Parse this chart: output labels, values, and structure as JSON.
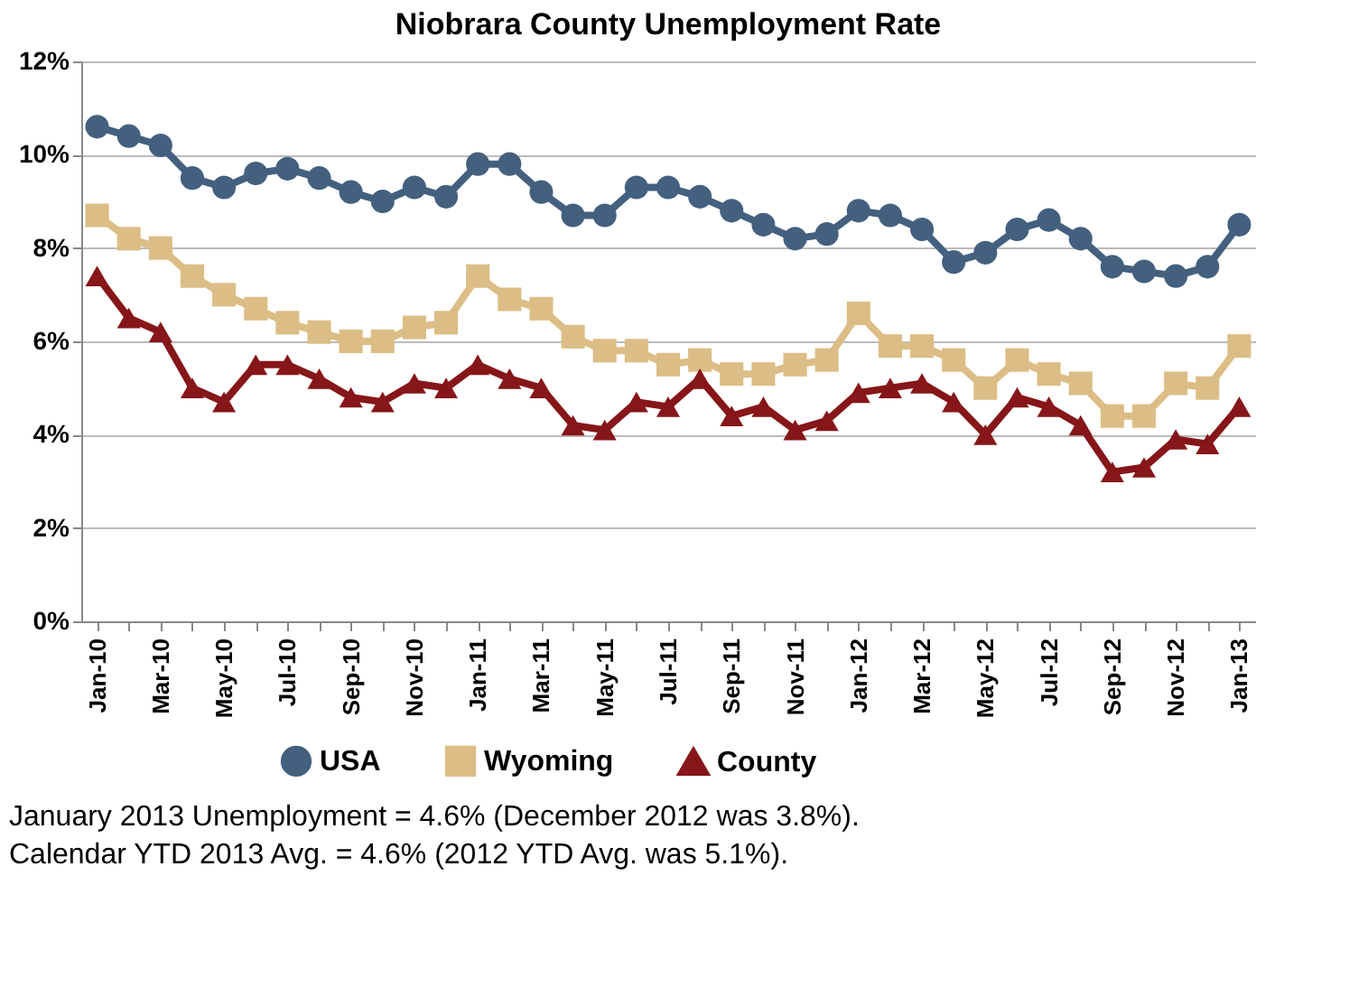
{
  "chart_data": {
    "type": "line",
    "title": "Niobrara County Unemployment Rate",
    "categories": [
      "Jan-10",
      null,
      "Mar-10",
      null,
      "May-10",
      null,
      "Jul-10",
      null,
      "Sep-10",
      null,
      "Nov-10",
      null,
      "Jan-11",
      null,
      "Mar-11",
      null,
      "May-11",
      null,
      "Jul-11",
      null,
      "Sep-11",
      null,
      "Nov-11",
      null,
      "Jan-12",
      null,
      "Mar-12",
      null,
      "May-12",
      null,
      "Jul-12",
      null,
      "Sep-12",
      null,
      "Nov-12",
      null,
      "Jan-13"
    ],
    "series": [
      {
        "name": "USA",
        "color": "#44607f",
        "marker": "circle",
        "values": [
          10.6,
          10.4,
          10.2,
          9.5,
          9.3,
          9.6,
          9.7,
          9.5,
          9.2,
          9.0,
          9.3,
          9.1,
          9.8,
          9.8,
          9.2,
          8.7,
          8.7,
          9.3,
          9.3,
          9.1,
          8.8,
          8.5,
          8.2,
          8.3,
          8.8,
          8.7,
          8.4,
          7.7,
          7.9,
          8.4,
          8.6,
          8.2,
          7.6,
          7.5,
          7.4,
          7.6,
          8.5
        ]
      },
      {
        "name": "Wyoming",
        "color": "#dcbd85",
        "marker": "square",
        "values": [
          8.7,
          8.2,
          8.0,
          7.4,
          7.0,
          6.7,
          6.4,
          6.2,
          6.0,
          6.0,
          6.3,
          6.4,
          7.4,
          6.9,
          6.7,
          6.1,
          5.8,
          5.8,
          5.5,
          5.6,
          5.3,
          5.3,
          5.5,
          5.6,
          6.6,
          5.9,
          5.9,
          5.6,
          5.0,
          5.6,
          5.3,
          5.1,
          4.4,
          4.4,
          5.1,
          5.0,
          5.9
        ]
      },
      {
        "name": "County",
        "color": "#861619",
        "marker": "triangle",
        "values": [
          7.4,
          6.5,
          6.2,
          5.0,
          4.7,
          5.5,
          5.5,
          5.2,
          4.8,
          4.7,
          5.1,
          5.0,
          5.5,
          5.2,
          5.0,
          4.2,
          4.1,
          4.7,
          4.6,
          5.2,
          4.4,
          4.6,
          4.1,
          4.3,
          4.9,
          5.0,
          5.1,
          4.7,
          4.0,
          4.8,
          4.6,
          4.2,
          3.2,
          3.3,
          3.9,
          3.8,
          4.6
        ]
      }
    ],
    "ylim": [
      0,
      12
    ],
    "yticks": [
      {
        "value": 0,
        "label": "0%"
      },
      {
        "value": 2,
        "label": "2%"
      },
      {
        "value": 4,
        "label": "4%"
      },
      {
        "value": 6,
        "label": "6%"
      },
      {
        "value": 8,
        "label": "8%"
      },
      {
        "value": 10,
        "label": "10%"
      },
      {
        "value": 12,
        "label": "12%"
      }
    ],
    "grid": "y",
    "legend": "bottom",
    "line_style": "solid",
    "annotations": [
      "January 2013 Unemployment = 4.6% (December 2012 was 3.8%).",
      "Calendar YTD 2013 Avg. = 4.6% (2012 YTD Avg. was 5.1%)."
    ]
  }
}
